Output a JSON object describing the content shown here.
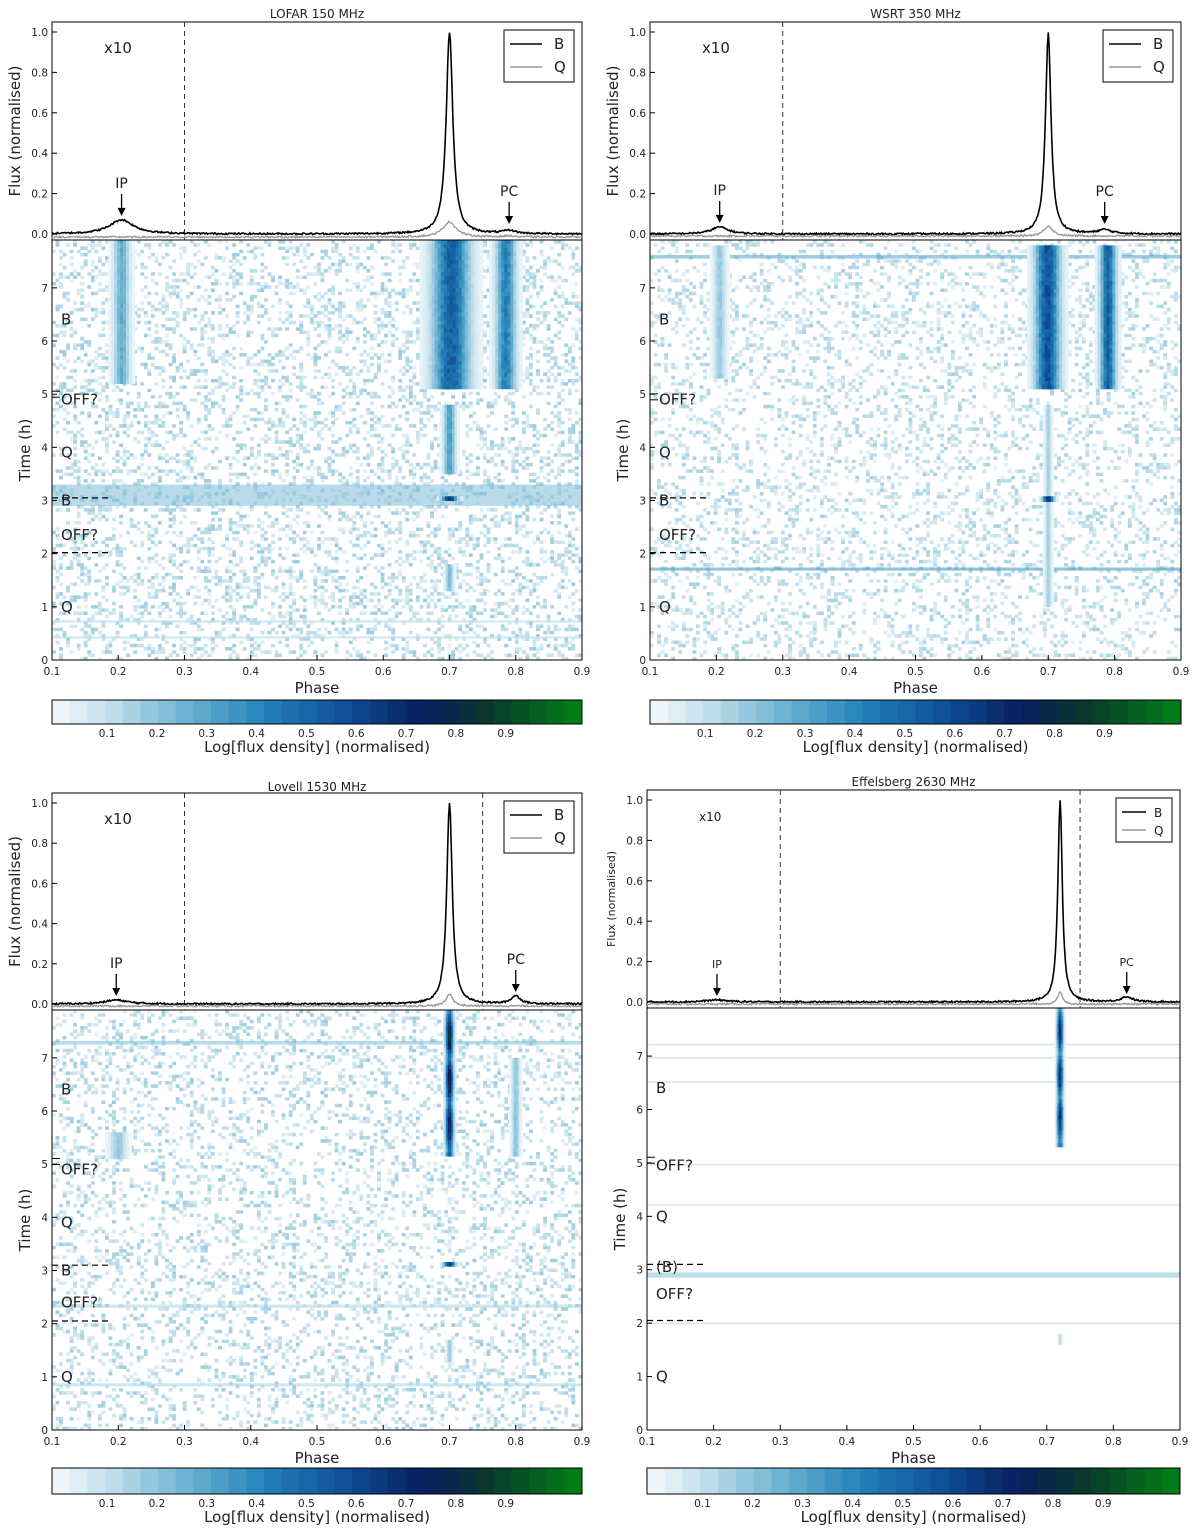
{
  "chart_data": [
    {
      "type": "heatmap",
      "title": "LOFAR 150 MHz",
      "top_ylabel": "Flux (normalised)",
      "ylabel": "Time (h)",
      "xlabel": "Phase",
      "cbar_label": "Log[flux density] (normalised)",
      "xlim": [
        0.1,
        0.9
      ],
      "top_ylim": [
        0,
        1
      ],
      "ylim": [
        0,
        7.9
      ],
      "x_ticks": [
        "0.1",
        "0.2",
        "0.3",
        "0.4",
        "0.5",
        "0.6",
        "0.7",
        "0.8",
        "0.9"
      ],
      "top_y_ticks": [
        "0.0",
        "0.2",
        "0.4",
        "0.6",
        "0.8",
        "1.0"
      ],
      "y_ticks": [
        "0",
        "1",
        "2",
        "3",
        "4",
        "5",
        "6",
        "7"
      ],
      "cbar_ticks": [
        "0.1",
        "0.2",
        "0.3",
        "0.4",
        "0.5",
        "0.6",
        "0.7",
        "0.8",
        "0.9"
      ],
      "scale_note": "x10",
      "legend": [
        "B",
        "Q"
      ],
      "markers": [
        {
          "label": "IP",
          "x": 0.205,
          "y": 0.07
        },
        {
          "label": "PC",
          "x": 0.79,
          "y": 0.03
        }
      ],
      "vlines": [
        0.3
      ],
      "profiles": [
        {
          "name": "B",
          "baseline": 0.0,
          "peaks": [
            {
              "x": 0.205,
              "height": 0.07,
              "width": 0.022
            },
            {
              "x": 0.7,
              "height": 1.0,
              "width": 0.006
            },
            {
              "x": 0.79,
              "height": 0.015,
              "width": 0.012
            }
          ]
        },
        {
          "name": "Q",
          "baseline": -0.015,
          "peaks": [
            {
              "x": 0.7,
              "height": 0.075,
              "width": 0.012
            },
            {
              "x": 0.79,
              "height": 0.005,
              "width": 0.01
            }
          ]
        }
      ],
      "mode_labels": [
        {
          "text": "B",
          "t": 6.4
        },
        {
          "text": "OFF?",
          "t": 4.9
        },
        {
          "text": "Q",
          "t": 3.9
        },
        {
          "text": "B",
          "t": 3.0
        },
        {
          "text": "OFF?",
          "t": 2.35
        },
        {
          "text": "Q",
          "t": 1.0
        }
      ],
      "boundaries": [
        {
          "t": 5.0,
          "style": "short"
        },
        {
          "t": 3.05,
          "style": "dashed"
        },
        {
          "t": 2.02,
          "style": "dashed"
        }
      ]
    },
    {
      "type": "heatmap",
      "title": "WSRT 350 MHz",
      "top_ylabel": "Flux (normalised)",
      "ylabel": "Time (h)",
      "xlabel": "Phase",
      "cbar_label": "Log[flux density] (normalised)",
      "xlim": [
        0.1,
        0.9
      ],
      "top_ylim": [
        0,
        1
      ],
      "ylim": [
        0,
        7.9
      ],
      "x_ticks": [
        "0.1",
        "0.2",
        "0.3",
        "0.4",
        "0.5",
        "0.6",
        "0.7",
        "0.8",
        "0.9"
      ],
      "top_y_ticks": [
        "0.0",
        "0.2",
        "0.4",
        "0.6",
        "0.8",
        "1.0"
      ],
      "y_ticks": [
        "0",
        "1",
        "2",
        "3",
        "4",
        "5",
        "6",
        "7"
      ],
      "cbar_ticks": [
        "0.1",
        "0.2",
        "0.3",
        "0.4",
        "0.5",
        "0.6",
        "0.7",
        "0.8",
        "0.9"
      ],
      "scale_note": "x10",
      "legend": [
        "B",
        "Q"
      ],
      "markers": [
        {
          "label": "IP",
          "x": 0.205,
          "y": 0.035
        },
        {
          "label": "PC",
          "x": 0.785,
          "y": 0.03
        }
      ],
      "vlines": [
        0.3
      ],
      "profiles": [
        {
          "name": "B",
          "baseline": 0.0,
          "peaks": [
            {
              "x": 0.205,
              "height": 0.035,
              "width": 0.015
            },
            {
              "x": 0.7,
              "height": 1.0,
              "width": 0.005
            },
            {
              "x": 0.785,
              "height": 0.02,
              "width": 0.012
            }
          ]
        },
        {
          "name": "Q",
          "baseline": -0.01,
          "peaks": [
            {
              "x": 0.7,
              "height": 0.05,
              "width": 0.008
            }
          ]
        }
      ],
      "mode_labels": [
        {
          "text": "B",
          "t": 6.4
        },
        {
          "text": "OFF?",
          "t": 4.9
        },
        {
          "text": "Q",
          "t": 3.9
        },
        {
          "text": "B",
          "t": 3.0
        },
        {
          "text": "OFF?",
          "t": 2.35
        },
        {
          "text": "Q",
          "t": 1.0
        }
      ],
      "boundaries": [
        {
          "t": 4.95,
          "style": "short"
        },
        {
          "t": 3.05,
          "style": "dashed"
        },
        {
          "t": 2.02,
          "style": "dashed"
        }
      ]
    },
    {
      "type": "heatmap",
      "title": "Lovell 1530 MHz",
      "top_ylabel": "Flux (normalised)",
      "ylabel": "Time (h)",
      "xlabel": "Phase",
      "cbar_label": "Log[flux density] (normalised)",
      "xlim": [
        0.1,
        0.9
      ],
      "top_ylim": [
        0,
        1
      ],
      "ylim": [
        0,
        7.9
      ],
      "x_ticks": [
        "0.1",
        "0.2",
        "0.3",
        "0.4",
        "0.5",
        "0.6",
        "0.7",
        "0.8",
        "0.9"
      ],
      "top_y_ticks": [
        "0.0",
        "0.2",
        "0.4",
        "0.6",
        "0.8",
        "1.0"
      ],
      "y_ticks": [
        "0",
        "1",
        "2",
        "3",
        "4",
        "5",
        "6",
        "7"
      ],
      "cbar_ticks": [
        "0.1",
        "0.2",
        "0.3",
        "0.4",
        "0.5",
        "0.6",
        "0.7",
        "0.8",
        "0.9"
      ],
      "scale_note": "x10",
      "legend": [
        "B",
        "Q"
      ],
      "markers": [
        {
          "label": "IP",
          "x": 0.197,
          "y": 0.02
        },
        {
          "label": "PC",
          "x": 0.8,
          "y": 0.04
        }
      ],
      "vlines": [
        0.3,
        0.75
      ],
      "profiles": [
        {
          "name": "B",
          "baseline": 0.0,
          "peaks": [
            {
              "x": 0.197,
              "height": 0.02,
              "width": 0.02
            },
            {
              "x": 0.7,
              "height": 1.0,
              "width": 0.005
            },
            {
              "x": 0.8,
              "height": 0.04,
              "width": 0.008
            }
          ]
        },
        {
          "name": "Q",
          "baseline": -0.01,
          "peaks": [
            {
              "x": 0.7,
              "height": 0.06,
              "width": 0.006
            }
          ]
        }
      ],
      "mode_labels": [
        {
          "text": "B",
          "t": 6.4
        },
        {
          "text": "OFF?",
          "t": 4.9
        },
        {
          "text": "Q",
          "t": 3.9
        },
        {
          "text": "B",
          "t": 3.0
        },
        {
          "text": "OFF?",
          "t": 2.4
        },
        {
          "text": "Q",
          "t": 1.0
        }
      ],
      "boundaries": [
        {
          "t": 5.05,
          "style": "short"
        },
        {
          "t": 3.1,
          "style": "dashed"
        },
        {
          "t": 2.05,
          "style": "dashed"
        }
      ]
    },
    {
      "type": "heatmap",
      "title": "Effelsberg 2630 MHz",
      "top_ylabel": "Flux (normalised)",
      "ylabel": "Time (h)",
      "xlabel": "Phase",
      "cbar_label": "Log[flux density] (normalised)",
      "xlim": [
        0.1,
        0.9
      ],
      "top_ylim": [
        0,
        1
      ],
      "ylim": [
        0,
        7.9
      ],
      "x_ticks": [
        "0.1",
        "0.2",
        "0.3",
        "0.4",
        "0.5",
        "0.6",
        "0.7",
        "0.8",
        "0.9"
      ],
      "top_y_ticks": [
        "0.0",
        "0.2",
        "0.4",
        "0.6",
        "0.8",
        "1.0"
      ],
      "y_ticks": [
        "0",
        "1",
        "2",
        "3",
        "4",
        "5",
        "6",
        "7"
      ],
      "cbar_ticks": [
        "0.1",
        "0.2",
        "0.3",
        "0.4",
        "0.5",
        "0.6",
        "0.7",
        "0.8",
        "0.9"
      ],
      "scale_note": "x10",
      "legend": [
        "B",
        "Q"
      ],
      "markers": [
        {
          "label": "IP",
          "x": 0.205,
          "y": 0.01
        },
        {
          "label": "PC",
          "x": 0.82,
          "y": 0.02
        }
      ],
      "vlines": [
        0.3,
        0.75
      ],
      "profiles": [
        {
          "name": "B",
          "baseline": 0.0,
          "peaks": [
            {
              "x": 0.205,
              "height": 0.01,
              "width": 0.02
            },
            {
              "x": 0.72,
              "height": 1.0,
              "width": 0.004
            },
            {
              "x": 0.82,
              "height": 0.025,
              "width": 0.01
            }
          ]
        },
        {
          "name": "Q",
          "baseline": -0.01,
          "peaks": [
            {
              "x": 0.72,
              "height": 0.06,
              "width": 0.004
            }
          ]
        }
      ],
      "mode_labels": [
        {
          "text": "B",
          "t": 6.4
        },
        {
          "text": "OFF?",
          "t": 4.95
        },
        {
          "text": "Q",
          "t": 4.0
        },
        {
          "text": "(B)",
          "t": 3.05
        },
        {
          "text": "OFF?",
          "t": 2.55
        },
        {
          "text": "Q",
          "t": 1.0
        }
      ],
      "boundaries": [
        {
          "t": 5.05,
          "style": "short"
        },
        {
          "t": 3.1,
          "style": "dashed"
        },
        {
          "t": 2.05,
          "style": "dashed"
        }
      ]
    }
  ]
}
